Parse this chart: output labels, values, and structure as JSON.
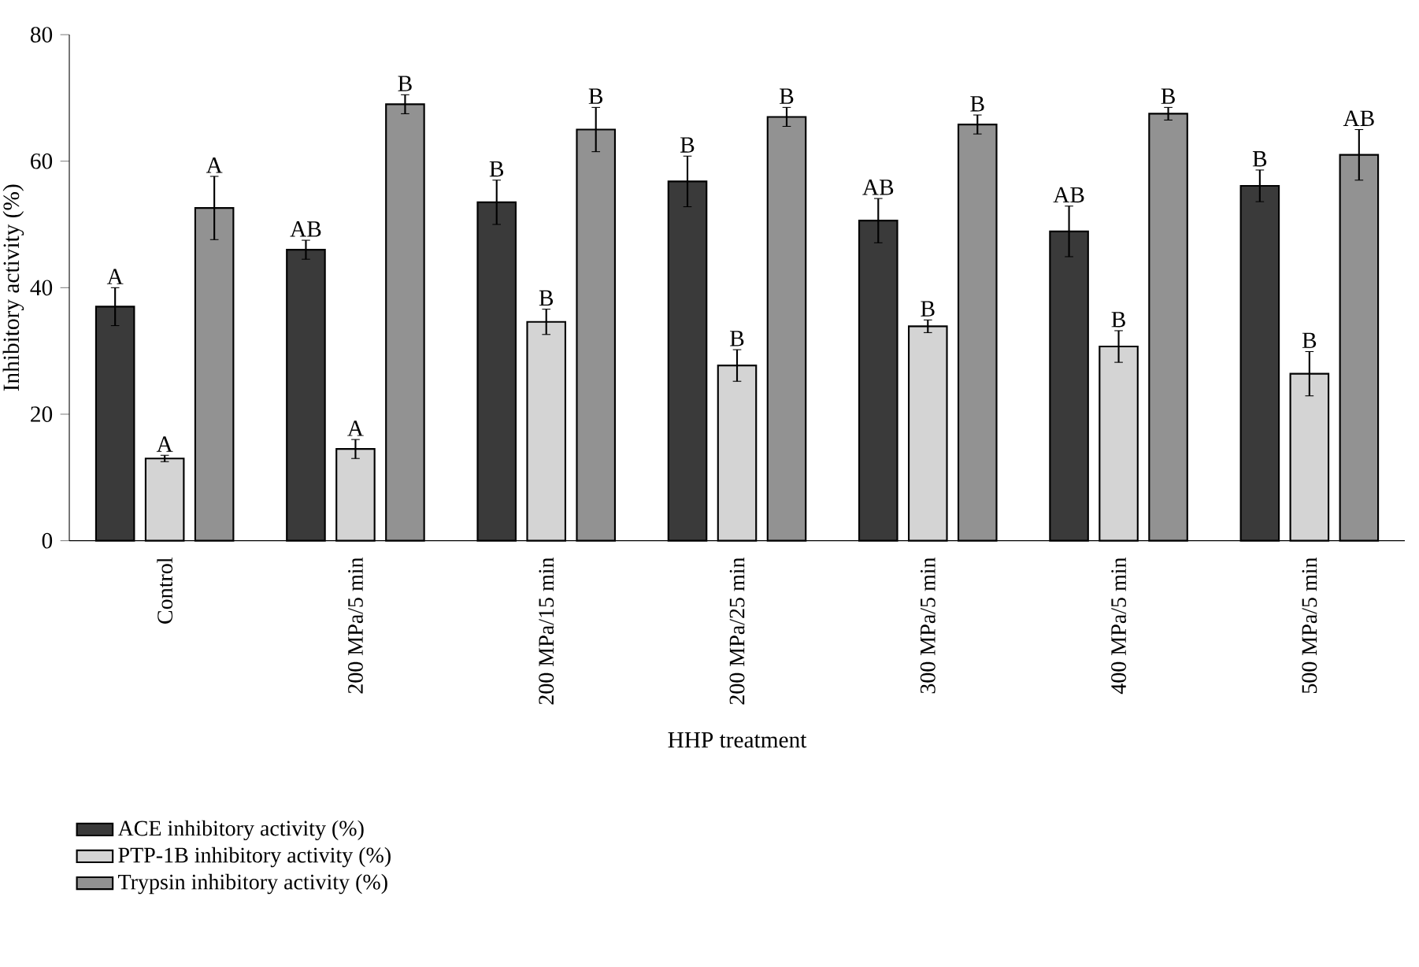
{
  "chart_data": {
    "type": "bar",
    "xlabel": "HHP treatment",
    "ylabel": "Inhibitory activity (%)",
    "categories": [
      "Control",
      "200 MPa/5 min",
      "200 MPa/15 min",
      "200 MPa/25 min",
      "300 MPa/5 min",
      "400 MPa/5 min",
      "500 MPa/5 min"
    ],
    "series": [
      {
        "name": "ACE inhibitory activity (%)",
        "color": "#3a3a3a",
        "values": [
          37,
          46,
          53.5,
          56.8,
          50.6,
          48.9,
          56.1
        ],
        "errors": [
          3,
          1.5,
          3.5,
          4,
          3.5,
          4,
          2.5
        ]
      },
      {
        "name": "PTP-1B inhibitory activity (%)",
        "color": "#d4d4d4",
        "values": [
          13,
          14.5,
          34.6,
          27.7,
          33.9,
          30.7,
          26.4
        ],
        "errors": [
          0.5,
          1.5,
          2,
          2.5,
          1,
          2.5,
          3.5
        ]
      },
      {
        "name": "Trypsin inhibitory activity (%)",
        "color": "#929292",
        "values": [
          52.6,
          69,
          65,
          67,
          65.8,
          67.5,
          61
        ],
        "errors": [
          5,
          1.5,
          3.5,
          1.5,
          1.5,
          1,
          4
        ]
      }
    ],
    "ylim": [
      0,
      80
    ],
    "yticks": [
      0,
      20,
      40,
      60,
      80
    ],
    "grid": false,
    "legend": "bottom left",
    "annotations": [
      "A",
      "A",
      "A",
      "AB",
      "A",
      "B",
      "B",
      "B",
      "B",
      "B",
      "B",
      "B",
      "AB",
      "B",
      "B",
      "AB",
      "B",
      "B",
      "B",
      "B",
      "AB"
    ]
  }
}
